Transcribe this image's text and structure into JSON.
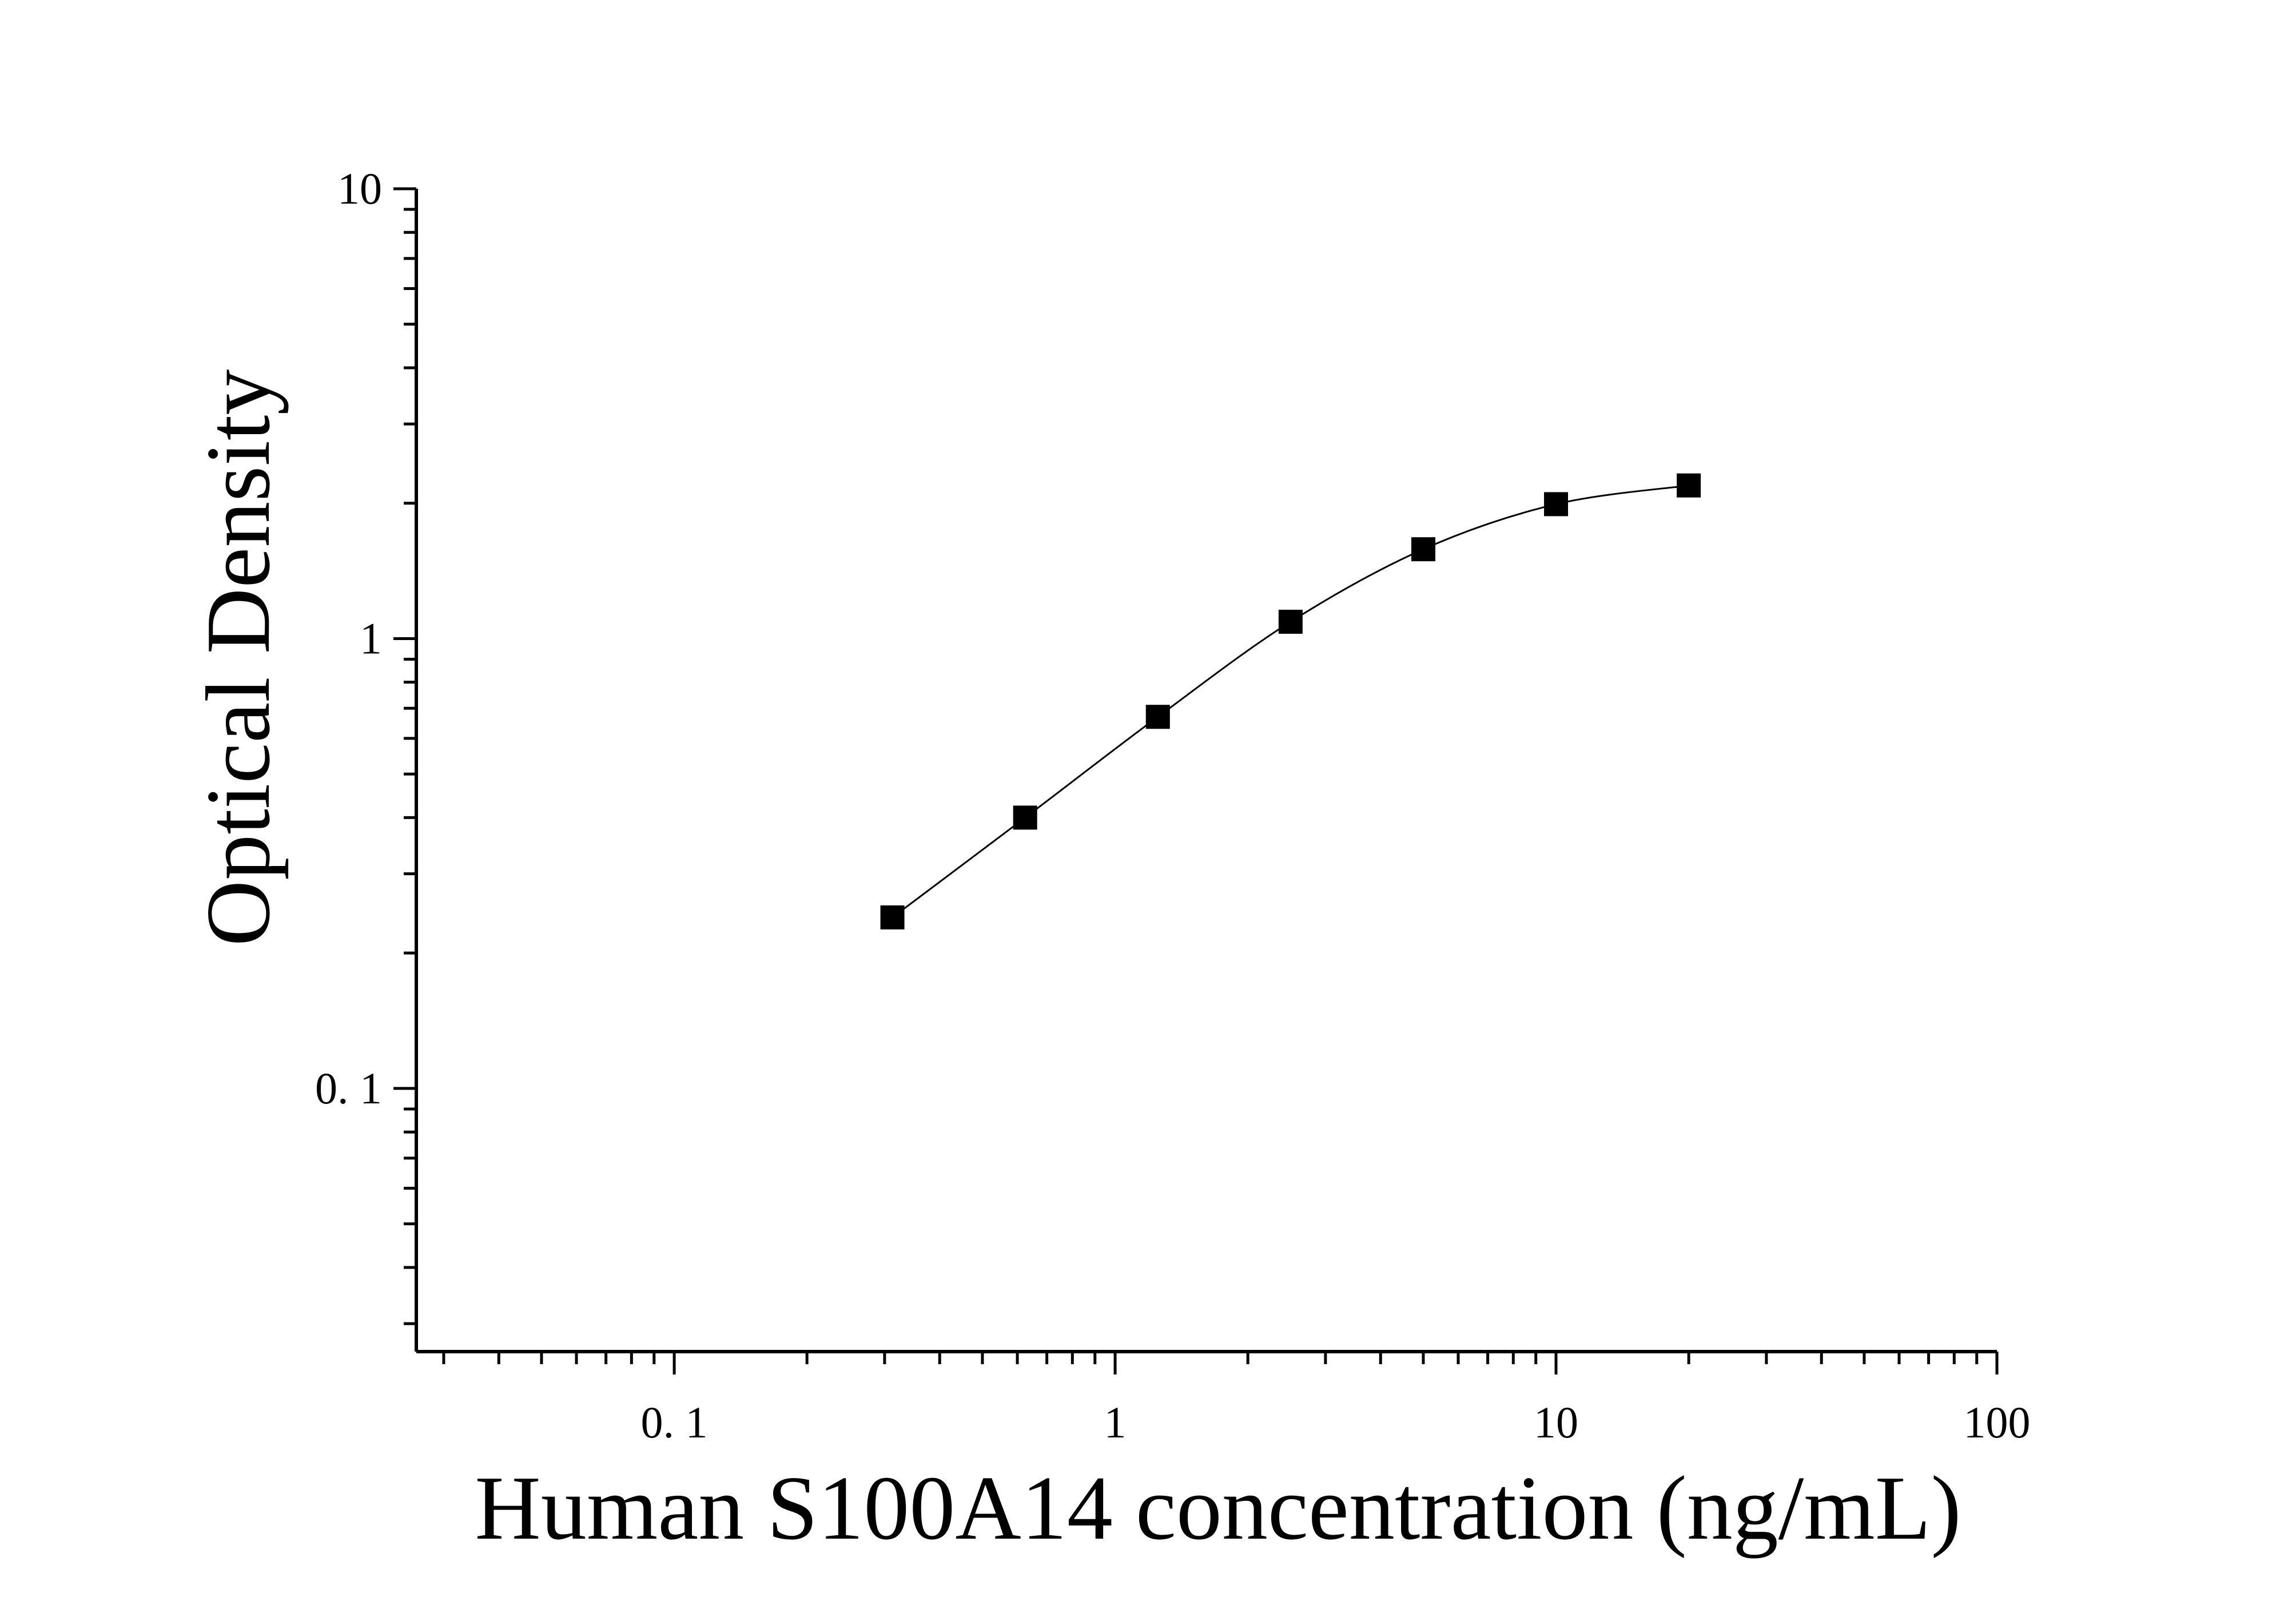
{
  "chart_data": {
    "type": "scatter",
    "title": "",
    "xlabel": "Human S100A14 concentration (ng/mL)",
    "ylabel": "Optical Density",
    "xscale": "log",
    "yscale": "log",
    "xlim": [
      0.026,
      100
    ],
    "ylim": [
      0.026,
      10
    ],
    "x_ticks": [
      {
        "value": 0.1,
        "label": "0. 1"
      },
      {
        "value": 1,
        "label": "1"
      },
      {
        "value": 10,
        "label": "10"
      },
      {
        "value": 100,
        "label": "100"
      }
    ],
    "y_ticks": [
      {
        "value": 0.1,
        "label": "0. 1"
      },
      {
        "value": 1,
        "label": "1"
      },
      {
        "value": 10,
        "label": "10"
      }
    ],
    "grid": false,
    "legend": "none",
    "colors": {
      "marker": "#000000",
      "curve": "#000000",
      "axis": "#000000",
      "background": "#ffffff"
    },
    "series": [
      {
        "marker": "square",
        "points": [
          {
            "x": 0.3125,
            "y": 0.24
          },
          {
            "x": 0.625,
            "y": 0.4
          },
          {
            "x": 1.25,
            "y": 0.67
          },
          {
            "x": 2.5,
            "y": 1.09
          },
          {
            "x": 5,
            "y": 1.58
          },
          {
            "x": 10,
            "y": 1.99
          },
          {
            "x": 20,
            "y": 2.19
          }
        ]
      }
    ]
  }
}
